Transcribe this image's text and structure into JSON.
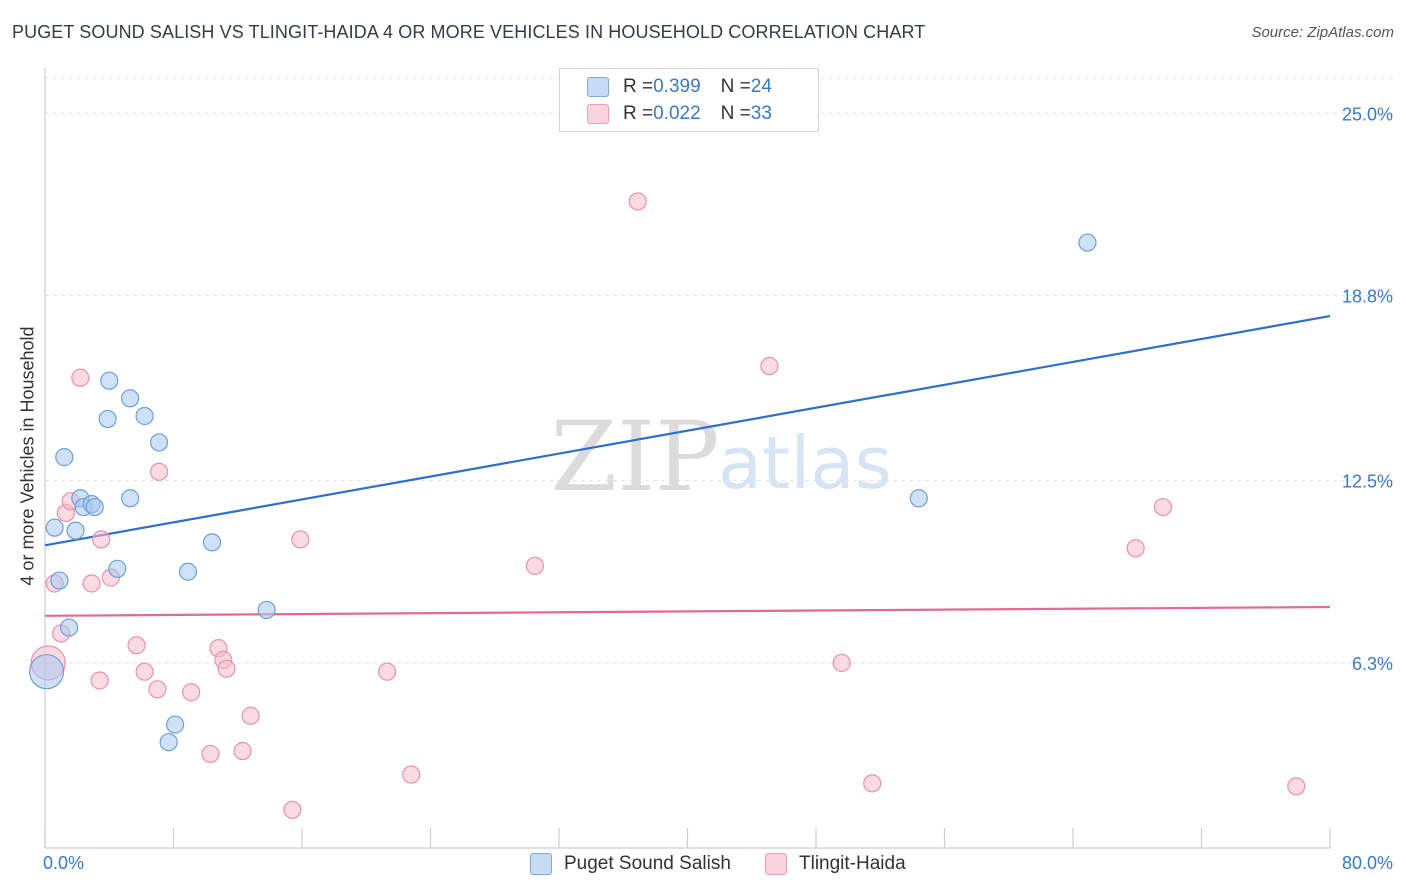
{
  "title": "PUGET SOUND SALISH VS TLINGIT-HAIDA 4 OR MORE VEHICLES IN HOUSEHOLD CORRELATION CHART",
  "source": "Source: ZipAtlas.com",
  "watermark": {
    "zip": "ZIP",
    "atlas": "atlas"
  },
  "legend": {
    "rows": [
      {
        "r_label": "R = ",
        "r_value": "0.399",
        "n_label": "N = ",
        "n_value": "24",
        "color": "#a8c8f0"
      },
      {
        "r_label": "R = ",
        "r_value": "0.022",
        "n_label": "N = ",
        "n_value": "33",
        "color": "#f7bccc"
      }
    ]
  },
  "chart_data": {
    "type": "scatter",
    "title": "PUGET SOUND SALISH VS TLINGIT-HAIDA 4 OR MORE VEHICLES IN HOUSEHOLD CORRELATION CHART",
    "xlabel": "",
    "ylabel": "4 or more Vehicles in Household",
    "xlim": [
      0,
      80
    ],
    "ylim": [
      0,
      26.2
    ],
    "x_tick_labels": [
      "0.0%",
      "80.0%"
    ],
    "y_ticks": [
      6.3,
      12.5,
      18.8,
      25.0
    ],
    "y_tick_labels": [
      "6.3%",
      "12.5%",
      "18.8%",
      "25.0%"
    ],
    "grid": true,
    "series": [
      {
        "name": "Puget Sound Salish",
        "color": "#a8c8f0",
        "stroke": "#6f9fd8",
        "trend_color": "#2f6fcc",
        "trend": {
          "x": [
            0,
            80
          ],
          "y": [
            10.3,
            18.1
          ]
        },
        "points": [
          [
            0.1,
            6.0
          ],
          [
            0.6,
            10.9
          ],
          [
            0.9,
            9.1
          ],
          [
            1.2,
            13.3
          ],
          [
            1.5,
            7.5
          ],
          [
            1.9,
            10.8
          ],
          [
            2.2,
            11.9
          ],
          [
            2.4,
            11.6
          ],
          [
            2.9,
            11.7
          ],
          [
            3.1,
            11.6
          ],
          [
            4.0,
            15.9
          ],
          [
            3.9,
            14.6
          ],
          [
            4.5,
            9.5
          ],
          [
            5.3,
            15.3
          ],
          [
            5.3,
            11.9
          ],
          [
            6.2,
            14.7
          ],
          [
            7.1,
            13.8
          ],
          [
            7.7,
            3.6
          ],
          [
            8.1,
            4.2
          ],
          [
            8.9,
            9.4
          ],
          [
            10.4,
            10.4
          ],
          [
            13.8,
            8.1
          ],
          [
            54.4,
            11.9
          ],
          [
            64.9,
            20.6
          ]
        ]
      },
      {
        "name": "Tlingit-Haida",
        "color": "#f7bccc",
        "stroke": "#e892ab",
        "trend_color": "#e46a93",
        "trend": {
          "x": [
            0,
            80
          ],
          "y": [
            7.9,
            8.2
          ]
        },
        "points": [
          [
            0.2,
            6.3
          ],
          [
            0.6,
            9.0
          ],
          [
            1.0,
            7.3
          ],
          [
            1.3,
            11.4
          ],
          [
            1.6,
            11.8
          ],
          [
            2.2,
            16.0
          ],
          [
            2.9,
            9.0
          ],
          [
            3.4,
            5.7
          ],
          [
            3.5,
            10.5
          ],
          [
            4.1,
            9.2
          ],
          [
            5.7,
            6.9
          ],
          [
            6.2,
            6.0
          ],
          [
            7.0,
            5.4
          ],
          [
            7.1,
            12.8
          ],
          [
            9.1,
            5.3
          ],
          [
            10.3,
            3.2
          ],
          [
            10.8,
            6.8
          ],
          [
            11.1,
            6.4
          ],
          [
            11.3,
            6.1
          ],
          [
            12.3,
            3.3
          ],
          [
            12.8,
            4.5
          ],
          [
            15.4,
            1.3
          ],
          [
            15.9,
            10.5
          ],
          [
            21.3,
            6.0
          ],
          [
            22.8,
            2.5
          ],
          [
            30.5,
            9.6
          ],
          [
            36.9,
            22.0
          ],
          [
            45.1,
            16.4
          ],
          [
            49.6,
            6.3
          ],
          [
            51.5,
            2.2
          ],
          [
            67.9,
            10.2
          ],
          [
            69.6,
            11.6
          ],
          [
            77.9,
            2.1
          ]
        ]
      }
    ]
  }
}
